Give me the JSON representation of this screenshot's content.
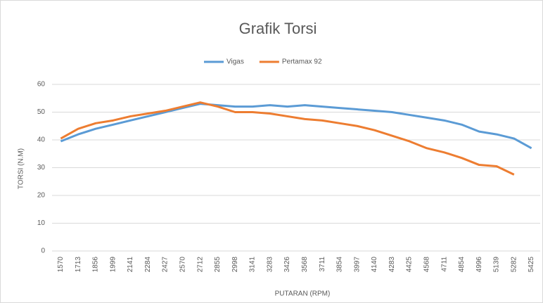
{
  "chart_data": {
    "type": "line",
    "title": "Grafik Torsi",
    "x_label": "PUTARAN (RPM)",
    "y_label": "TORSI (N.M)",
    "categories": [
      "1570",
      "1713",
      "1856",
      "1999",
      "2141",
      "2284",
      "2427",
      "2570",
      "2712",
      "2855",
      "2998",
      "3141",
      "3283",
      "3426",
      "3568",
      "3711",
      "3854",
      "3997",
      "4140",
      "4283",
      "4425",
      "4568",
      "4711",
      "4854",
      "4996",
      "5139",
      "5282",
      "5425"
    ],
    "series": [
      {
        "name": "Vigas",
        "color": "#5b9bd5",
        "values": [
          39.5,
          42,
          44,
          45.5,
          47,
          48.5,
          50,
          51.5,
          53,
          52.5,
          52,
          52,
          52.5,
          52,
          52.5,
          52,
          51.5,
          51,
          50.5,
          50,
          49,
          48,
          47,
          45.5,
          43,
          42,
          40.5,
          37
        ]
      },
      {
        "name": "Pertamax 92",
        "color": "#ed7d31",
        "values": [
          40.5,
          44,
          46,
          47,
          48.5,
          49.5,
          50.5,
          52,
          53.5,
          52,
          50,
          50,
          49.5,
          48.5,
          47.5,
          47,
          46,
          45,
          43.5,
          41.5,
          39.5,
          37,
          35.5,
          33.5,
          31,
          30.5,
          27.5,
          null
        ]
      }
    ],
    "ylim": [
      0,
      60
    ],
    "yticks": [
      0,
      10,
      20,
      30,
      40,
      50,
      60
    ],
    "grid": true,
    "legend": "top"
  }
}
